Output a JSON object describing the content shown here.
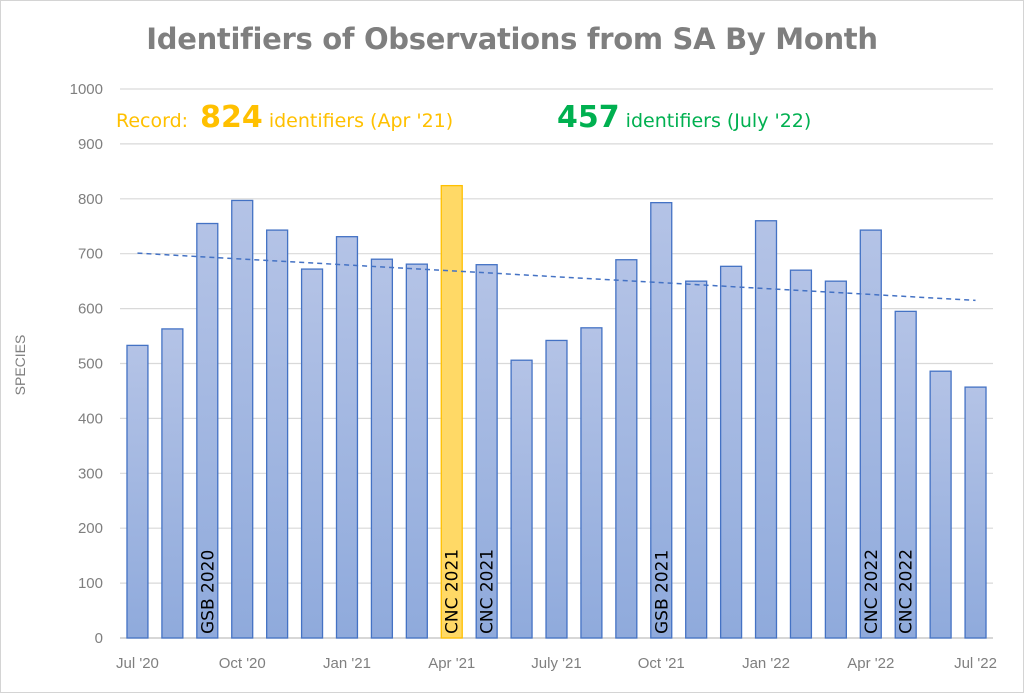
{
  "chart_data": {
    "type": "bar",
    "title": "Identifiers of Observations from SA By Month",
    "xlabel": "",
    "ylabel": "SPECIES",
    "ylim": [
      0,
      1000
    ],
    "yticks": [
      0,
      100,
      200,
      300,
      400,
      500,
      600,
      700,
      800,
      900,
      1000
    ],
    "grid": true,
    "categories": [
      "Jul 2020",
      "Aug 2020",
      "Sep 2020",
      "Oct 2020",
      "Nov 2020",
      "Dec 2020",
      "Jan 2021",
      "Feb 2021",
      "Mar 2021",
      "Apr 2021",
      "May 2021",
      "Jun 2021",
      "Jul 2021",
      "Aug 2021",
      "Sep 2021",
      "Oct 2021",
      "Nov 2021",
      "Dec 2021",
      "Jan 2022",
      "Feb 2022",
      "Mar 2022",
      "Apr 2022",
      "May 2022",
      "Jun 2022",
      "Jul 2022"
    ],
    "values": [
      533,
      563,
      755,
      797,
      743,
      672,
      731,
      690,
      681,
      824,
      680,
      506,
      542,
      565,
      689,
      793,
      650,
      677,
      760,
      670,
      650,
      743,
      595,
      486,
      457
    ],
    "x_tick_labels": [
      {
        "index": 0,
        "label": "Jul '20"
      },
      {
        "index": 3,
        "label": "Oct '20"
      },
      {
        "index": 6,
        "label": "Jan '21"
      },
      {
        "index": 9,
        "label": "Apr '21"
      },
      {
        "index": 12,
        "label": "July '21"
      },
      {
        "index": 15,
        "label": "Oct '21"
      },
      {
        "index": 18,
        "label": "Jan '22"
      },
      {
        "index": 21,
        "label": "Apr '22"
      },
      {
        "index": 24,
        "label": "Jul '22"
      }
    ],
    "highlight_index": 9,
    "bar_color": "#8faadc",
    "bar_border_color": "#4472c4",
    "highlight_color": "#ffd966",
    "highlight_border_color": "#ffc000",
    "trendline": {
      "type": "linear",
      "start": 701,
      "end": 615,
      "style": "dashed",
      "color": "#4472c4"
    },
    "event_labels": [
      {
        "index": 2,
        "label": "GSB 2020"
      },
      {
        "index": 9,
        "label": "CNC 2021"
      },
      {
        "index": 10,
        "label": "CNC 2021"
      },
      {
        "index": 15,
        "label": "GSB 2021"
      },
      {
        "index": 21,
        "label": "CNC 2022"
      },
      {
        "index": 22,
        "label": "CNC 2022"
      }
    ],
    "annotations": {
      "record": {
        "prefix": "Record:",
        "value": "824",
        "suffix": "identifiers (Apr '21)",
        "color": "#ffc000"
      },
      "latest": {
        "value": "457",
        "suffix": "identifiers (July '22)",
        "color": "#00b050"
      }
    }
  }
}
